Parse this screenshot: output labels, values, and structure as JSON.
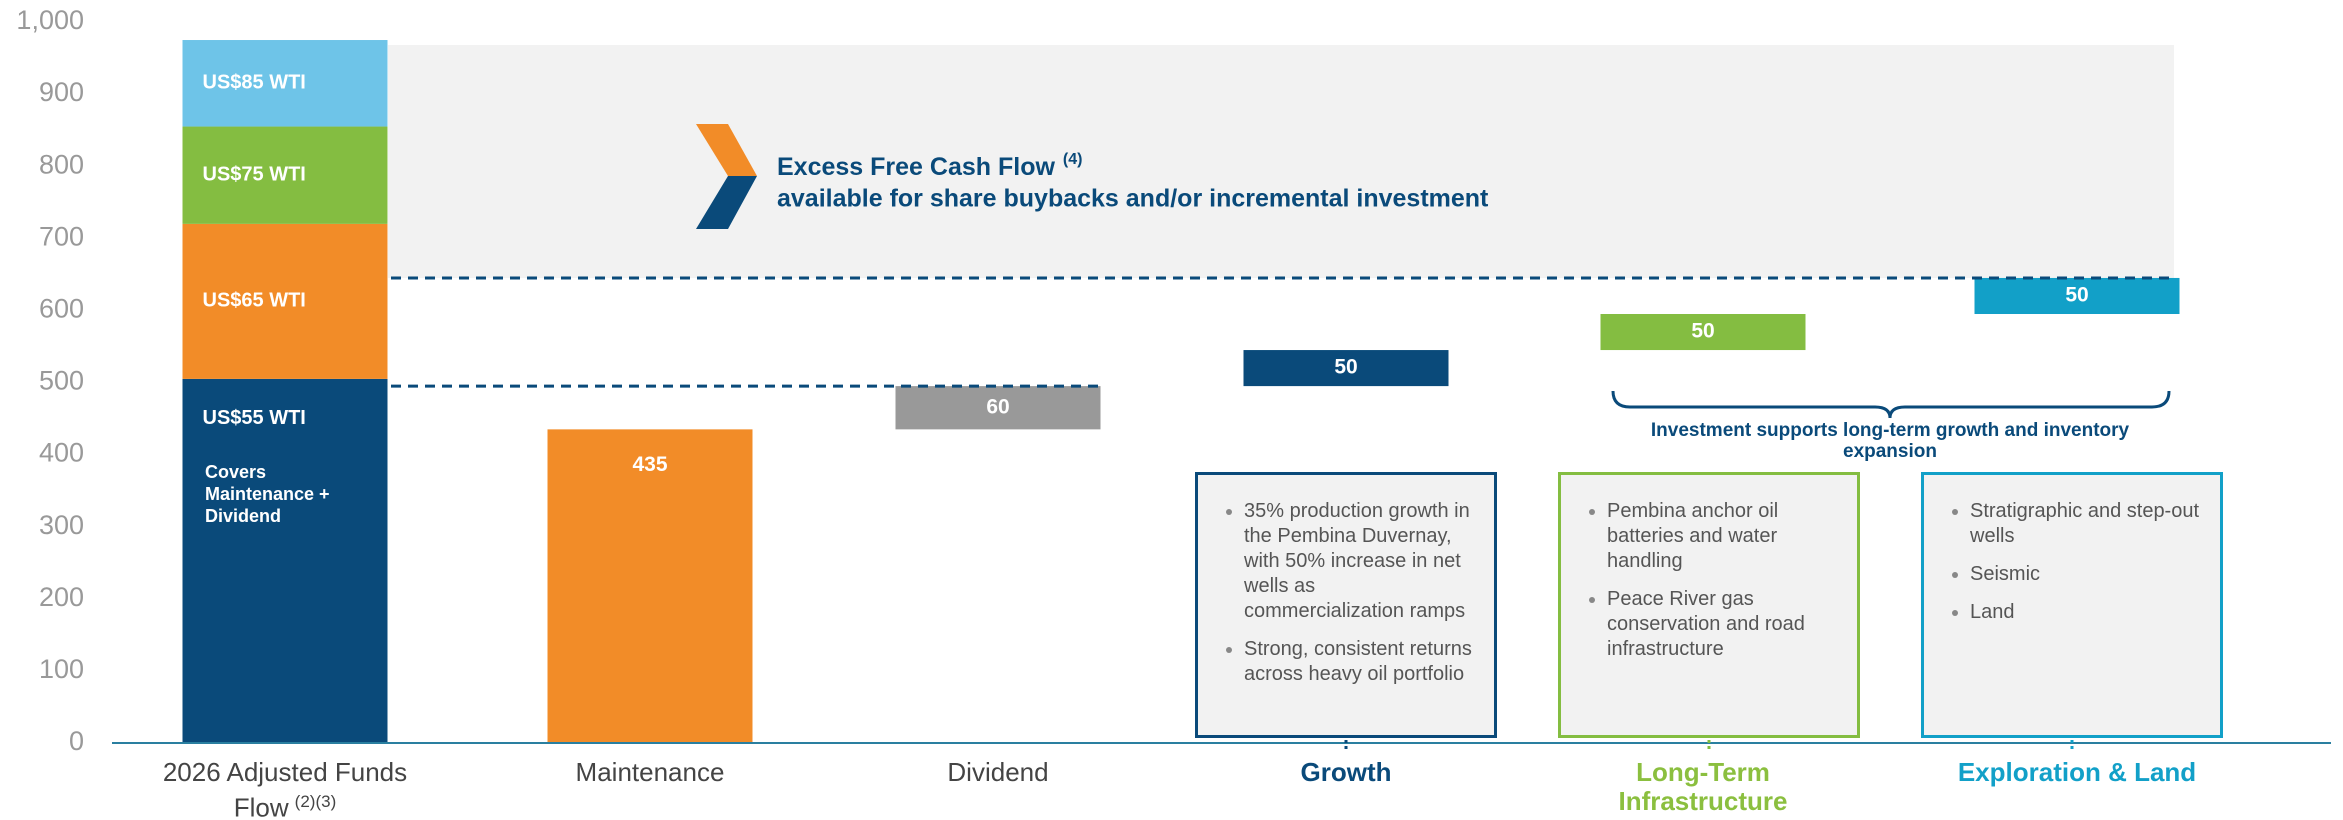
{
  "chart_data": {
    "type": "waterfall",
    "categories": [
      "2026 Adjusted Funds Flow",
      "Maintenance",
      "Dividend",
      "Growth",
      "Long-Term Infrastructure",
      "Exploration & Land"
    ],
    "first_category_note": "(2)(3)",
    "category_colors": [
      "#444444",
      "#444444",
      "#444444",
      "#0a4a7a",
      "#8bbf3f",
      "#12a0c8"
    ],
    "series": [
      {
        "name": "US$55 WTI",
        "color": "#0a4a7a",
        "values": [
          505,
          null,
          null,
          null,
          null,
          null
        ]
      },
      {
        "name": "US$65 WTI",
        "color": "#f28c28",
        "values": [
          215,
          null,
          null,
          null,
          null,
          null
        ]
      },
      {
        "name": "US$75 WTI",
        "color": "#84bd41",
        "values": [
          135,
          null,
          null,
          null,
          null,
          null
        ]
      },
      {
        "name": "US$85 WTI",
        "color": "#6ec4e8",
        "values": [
          120,
          null,
          null,
          null,
          null,
          null
        ]
      }
    ],
    "waterfall": {
      "values": [
        null,
        435,
        60,
        50,
        50,
        50
      ],
      "colors": [
        null,
        "#f28c28",
        "#999999",
        "#0a4a7a",
        "#84bd41",
        "#12a0c8"
      ]
    },
    "ylim": [
      0,
      1000
    ],
    "yticks": [
      0,
      100,
      200,
      300,
      400,
      500,
      600,
      700,
      800,
      900,
      {
        "value": 1000,
        "label": "1,000"
      }
    ],
    "annotations": {
      "covers": "Covers Maintenance + Dividend",
      "excess_title": "Excess Free Cash Flow",
      "excess_note": "(4)",
      "excess_subtitle": "available for share buybacks and/or incremental investment",
      "brace": "Investment supports long-term growth and inventory expansion"
    }
  },
  "boxes": [
    {
      "bullets": [
        "35% production growth in the Pembina Duvernay, with 50% increase in net wells as commercialization ramps",
        "Strong, consistent returns across heavy oil portfolio"
      ]
    },
    {
      "bullets": [
        "Pembina anchor oil batteries and water handling",
        "Peace River gas conservation and road infrastructure"
      ]
    },
    {
      "bullets": [
        "Stratigraphic and step-out wells",
        "Seismic",
        "Land"
      ]
    }
  ]
}
